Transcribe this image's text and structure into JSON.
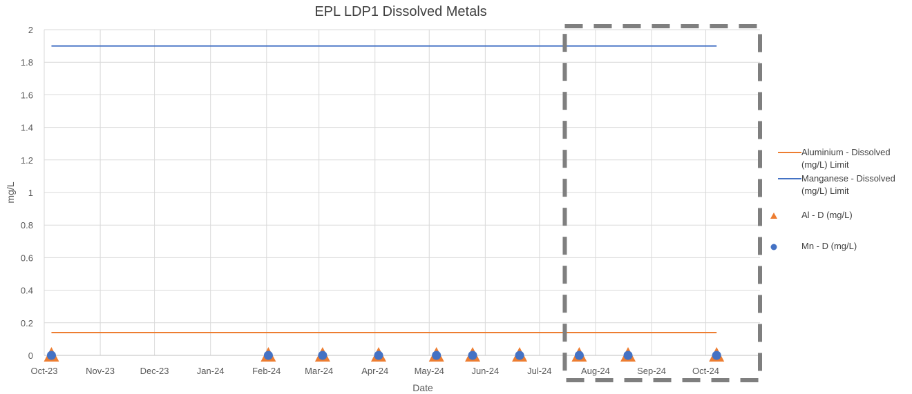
{
  "chart_data": {
    "type": "scatter",
    "title": "EPL LDP1 Dissolved Metals",
    "xlabel": "Date",
    "ylabel": "mg/L",
    "ylim": [
      0,
      2
    ],
    "yticks": [
      "0",
      "0.2",
      "0.4",
      "0.6",
      "0.8",
      "1",
      "1.2",
      "1.4",
      "1.6",
      "1.8",
      "2"
    ],
    "xlim": [
      "2023-10-01",
      "2024-10-31"
    ],
    "xticks": [
      {
        "date": "2023-10-01",
        "label": "Oct-23"
      },
      {
        "date": "2023-11-01",
        "label": "Nov-23"
      },
      {
        "date": "2023-12-01",
        "label": "Dec-23"
      },
      {
        "date": "2024-01-01",
        "label": "Jan-24"
      },
      {
        "date": "2024-02-01",
        "label": "Feb-24"
      },
      {
        "date": "2024-03-01",
        "label": "Mar-24"
      },
      {
        "date": "2024-04-01",
        "label": "Apr-24"
      },
      {
        "date": "2024-05-01",
        "label": "May-24"
      },
      {
        "date": "2024-06-01",
        "label": "Jun-24"
      },
      {
        "date": "2024-07-01",
        "label": "Jul-24"
      },
      {
        "date": "2024-08-01",
        "label": "Aug-24"
      },
      {
        "date": "2024-09-01",
        "label": "Sep-24"
      },
      {
        "date": "2024-10-01",
        "label": "Oct-24"
      }
    ],
    "grid": true,
    "legend_position": "right",
    "series": [
      {
        "name": "Aluminium - Dissolved (mg/L) Limit",
        "kind": "line",
        "color": "#ED7D31",
        "x": [
          "2023-10-05",
          "2024-10-07"
        ],
        "y": [
          0.14,
          0.14
        ]
      },
      {
        "name": "Manganese - Dissolved (mg/L) Limit",
        "kind": "line",
        "color": "#4472C4",
        "x": [
          "2023-10-05",
          "2024-10-07"
        ],
        "y": [
          1.9,
          1.9
        ]
      },
      {
        "name": "Al - D (mg/L)",
        "kind": "triangle",
        "color": "#ED7D31",
        "x": [
          "2023-10-05",
          "2024-02-02",
          "2024-03-03",
          "2024-04-03",
          "2024-05-05",
          "2024-05-25",
          "2024-06-20",
          "2024-07-23",
          "2024-08-19",
          "2024-10-07"
        ],
        "y": [
          0,
          0,
          0,
          0,
          0,
          0,
          0,
          0,
          0,
          0
        ]
      },
      {
        "name": "Mn - D (mg/L)",
        "kind": "circle",
        "color": "#4472C4",
        "x": [
          "2023-10-05",
          "2024-02-02",
          "2024-03-03",
          "2024-04-03",
          "2024-05-05",
          "2024-05-25",
          "2024-06-20",
          "2024-07-23",
          "2024-08-19",
          "2024-10-07"
        ],
        "y": [
          0,
          0,
          0,
          0,
          0,
          0,
          0,
          0,
          0,
          0
        ]
      }
    ],
    "annotation": {
      "type": "dashed-rectangle",
      "color": "#7F7F7F",
      "x_from": "2024-07-15"
    }
  }
}
